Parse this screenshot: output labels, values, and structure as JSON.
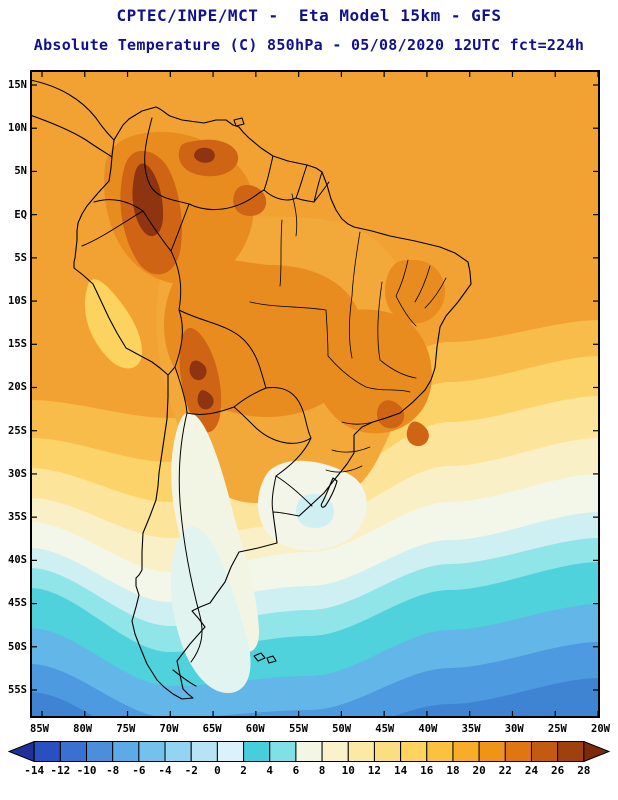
{
  "header": {
    "line1": "CPTEC/INPE/MCT -  Eta Model 15km - GFS",
    "line2": "Absolute Temperature (C) 850hPa - 05/08/2020 12UTC fct=224h"
  },
  "map": {
    "lat_labels": [
      "15N",
      "10N",
      "5N",
      "EQ",
      "5S",
      "10S",
      "15S",
      "20S",
      "25S",
      "30S",
      "35S",
      "40S",
      "45S",
      "50S",
      "55S"
    ],
    "lon_labels": [
      "85W",
      "80W",
      "75W",
      "70W",
      "65W",
      "60W",
      "55W",
      "50W",
      "45W",
      "40W",
      "35W",
      "30W",
      "25W",
      "20W"
    ]
  },
  "colorbar": {
    "tick_labels": [
      "-14",
      "-12",
      "-10",
      "-8",
      "-6",
      "-4",
      "-2",
      "0",
      "2",
      "4",
      "6",
      "8",
      "10",
      "12",
      "14",
      "16",
      "18",
      "20",
      "22",
      "24",
      "26",
      "28"
    ],
    "colors": [
      "#20309A",
      "#2A4FC0",
      "#3A70D0",
      "#4A8EDC",
      "#5CAAE6",
      "#74C2EC",
      "#92D4F2",
      "#B6E4F6",
      "#DCF2FA",
      "#45CEDC",
      "#7FE0E6",
      "#F3F6E4",
      "#FAF2CA",
      "#FCE9A6",
      "#FCDE82",
      "#FCD45E",
      "#FBC23E",
      "#F8AD28",
      "#F09418",
      "#E07612",
      "#C25A10",
      "#A0400E",
      "#7C2A0A"
    ]
  },
  "chart_data": {
    "type": "heatmap",
    "title": "Absolute Temperature (C) 850hPa",
    "source": "CPTEC/INPE/MCT",
    "model": "Eta Model 15km - GFS",
    "valid": "05/08/2020 12UTC fct=224h",
    "units": "C",
    "lat_range": [
      "55S",
      "15N"
    ],
    "lon_range": [
      "85W",
      "20W"
    ],
    "levels_c": [
      -14,
      -12,
      -10,
      -8,
      -6,
      -4,
      -2,
      0,
      2,
      4,
      6,
      8,
      10,
      12,
      14,
      16,
      18,
      20,
      22,
      24,
      26,
      28
    ],
    "legend_position": "bottom",
    "field_estimates": [
      {
        "region": "Tropical South America and adjacent oceans north of 15S",
        "approx_c": "18 to 22"
      },
      {
        "region": "Colombian / Venezuelan Andes hot spots",
        "approx_c": "24 to 30"
      },
      {
        "region": "Western Amazon and central Brazil",
        "approx_c": "20 to 24"
      },
      {
        "region": "Peru-Bolivia Andes ridge",
        "approx_c": "24 to 28"
      },
      {
        "region": "Subtropical Atlantic 15S-28S",
        "approx_c": "10 to 18"
      },
      {
        "region": "Paraguay / northern Argentina",
        "approx_c": "16 to 20"
      },
      {
        "region": "Uruguay / Pampas cold pocket",
        "approx_c": "2 to 8"
      },
      {
        "region": "Andes cold tongue along Chile-Argentina",
        "approx_c": "0 to 6"
      },
      {
        "region": "Patagonia",
        "approx_c": "0 to 4"
      },
      {
        "region": "Southern Ocean south of 45S",
        "approx_c": "-10 to -2"
      }
    ]
  }
}
